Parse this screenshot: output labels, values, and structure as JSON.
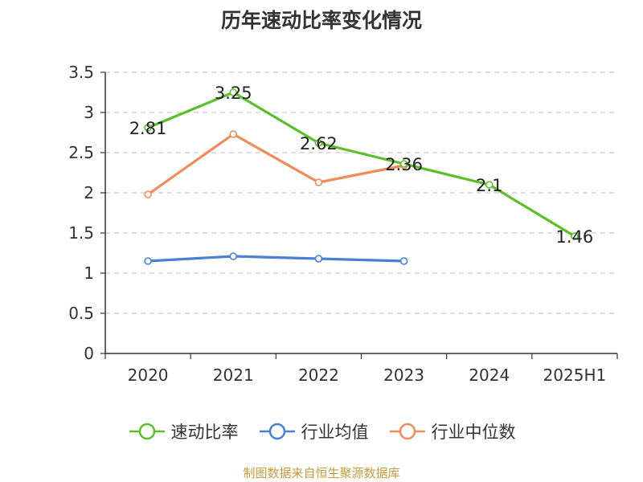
{
  "chart_data": {
    "type": "line",
    "title": "历年速动比率变化情况",
    "categories": [
      "2020",
      "2021",
      "2022",
      "2023",
      "2024",
      "2025H1"
    ],
    "ylim": [
      0,
      3.5
    ],
    "yticks": [
      "0",
      "0.5",
      "1",
      "1.5",
      "2",
      "2.5",
      "3",
      "3.5"
    ],
    "ytick_values": [
      0,
      0.5,
      1,
      1.5,
      2,
      2.5,
      3,
      3.5
    ],
    "grid": true,
    "legend_position": "bottom",
    "series": [
      {
        "name": "速动比率",
        "color": "#5bbf2b",
        "values": [
          2.81,
          3.25,
          2.62,
          2.36,
          2.1,
          1.46
        ],
        "labels": [
          "2.81",
          "3.25",
          "2.62",
          "2.36",
          "2.1",
          "1.46"
        ]
      },
      {
        "name": "行业均值",
        "color": "#4a7fd6",
        "values": [
          1.15,
          1.21,
          1.18,
          1.15,
          null,
          null
        ]
      },
      {
        "name": "行业中位数",
        "color": "#f08c5a",
        "values": [
          1.98,
          2.73,
          2.13,
          2.34,
          null,
          null
        ]
      }
    ]
  },
  "legend": [
    {
      "label": "速动比率",
      "color": "#5bbf2b"
    },
    {
      "label": "行业均值",
      "color": "#4a7fd6"
    },
    {
      "label": "行业中位数",
      "color": "#f08c5a"
    }
  ],
  "source": "制图数据来自恒生聚源数据库"
}
